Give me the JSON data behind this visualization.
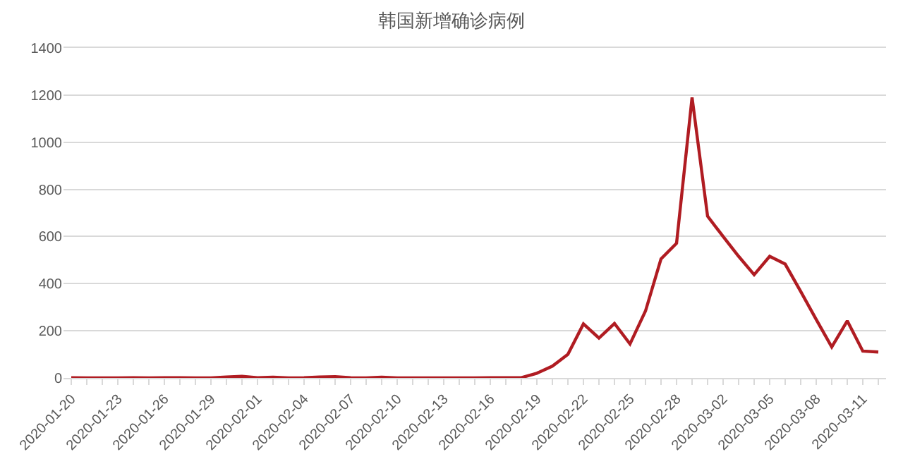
{
  "chart_data": {
    "type": "line",
    "title": "韩国新增确诊病例",
    "categories": [
      "2020-01-20",
      null,
      null,
      "2020-01-23",
      null,
      null,
      "2020-01-26",
      null,
      null,
      "2020-01-29",
      null,
      null,
      "2020-02-01",
      null,
      null,
      "2020-02-04",
      null,
      null,
      "2020-02-07",
      null,
      null,
      "2020-02-10",
      null,
      null,
      "2020-02-13",
      null,
      null,
      "2020-02-16",
      null,
      null,
      "2020-02-19",
      null,
      null,
      "2020-02-22",
      null,
      null,
      "2020-02-25",
      null,
      null,
      "2020-02-28",
      null,
      null,
      "2020-03-02",
      null,
      null,
      "2020-03-05",
      null,
      null,
      "2020-03-08",
      null,
      null,
      "2020-03-11",
      null
    ],
    "series": [
      {
        "color": "#b01c22",
        "values": [
          1,
          0,
          0,
          0,
          1,
          0,
          1,
          1,
          0,
          0,
          4,
          7,
          1,
          3,
          0,
          1,
          4,
          5,
          1,
          0,
          3,
          0,
          0,
          0,
          0,
          0,
          0,
          1,
          1,
          1,
          20,
          50,
          100,
          229,
          169,
          231,
          144,
          284,
          505,
          571,
          1190,
          686,
          600,
          516,
          438,
          516,
          483,
          367,
          248,
          131,
          242,
          114,
          110
        ]
      }
    ],
    "ylim": [
      0,
      1400
    ],
    "yticks": [
      0,
      200,
      400,
      600,
      800,
      1000,
      1200,
      1400
    ],
    "grid": "y",
    "marker": "none",
    "line_style": "solid"
  }
}
